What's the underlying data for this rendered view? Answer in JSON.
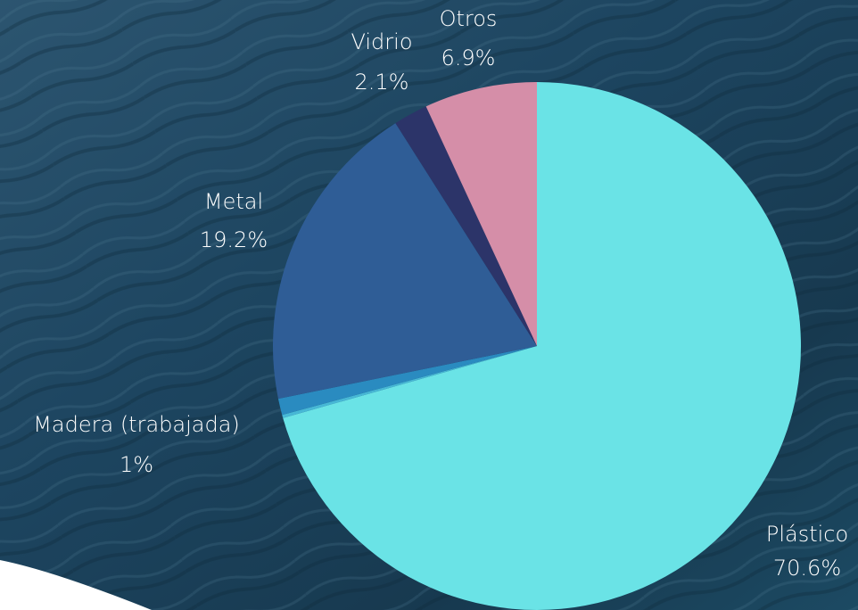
{
  "chart_data": {
    "type": "pie",
    "categories": [
      "Plástico",
      null,
      "Madera (trabajada)",
      "Metal",
      "Vidrio",
      "Otros"
    ],
    "values": [
      70.6,
      0.2,
      1,
      19.2,
      2.1,
      6.9
    ],
    "value_labels": [
      "70.6%",
      null,
      "1%",
      "19.2%",
      "2.1%",
      "6.9%"
    ],
    "colors": [
      "#6ae3e6",
      "#47b8d6",
      "#2a8bc0",
      "#2f5d96",
      "#2c3469",
      "#d58ea8"
    ]
  }
}
